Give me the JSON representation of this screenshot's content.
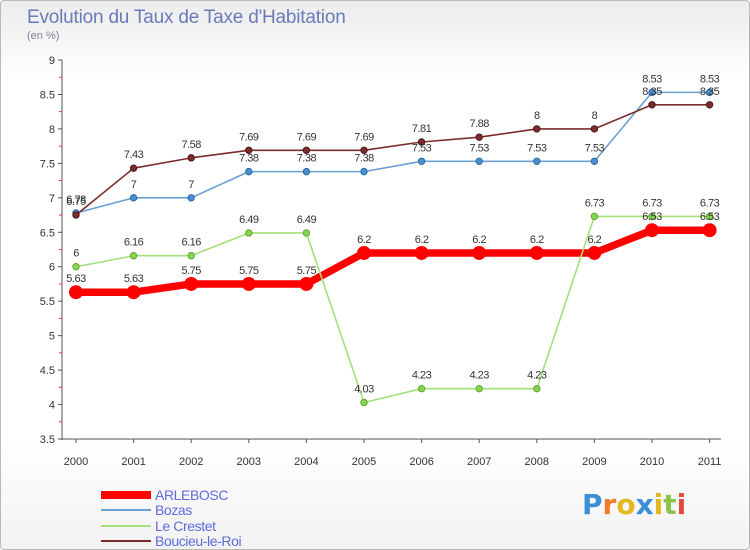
{
  "chart_data": {
    "type": "line",
    "title": "Evolution du Taux de Taxe d'Habitation",
    "subtitle": "(en %)",
    "x": [
      "2000",
      "2001",
      "2002",
      "2003",
      "2004",
      "2005",
      "2006",
      "2007",
      "2008",
      "2009",
      "2010",
      "2011"
    ],
    "ylim": [
      3.5,
      9
    ],
    "yticks": [
      "3.5",
      "4",
      "4.5",
      "5",
      "5.5",
      "6",
      "6.5",
      "7",
      "7.5",
      "8",
      "8.5",
      "9"
    ],
    "grid": "off",
    "legend_position": "bottom-left",
    "series": [
      {
        "name": "ARLEBOSC",
        "color": "#ff0000",
        "values": [
          5.63,
          5.63,
          5.75,
          5.75,
          5.75,
          6.2,
          6.2,
          6.2,
          6.2,
          6.2,
          6.53,
          6.53
        ],
        "labels": [
          "5.63",
          "5.63",
          "5.75",
          "5.75",
          "5.75",
          "6.2",
          "6.2",
          "6.2",
          "6.2",
          "6.2",
          "6.53",
          "6.53"
        ]
      },
      {
        "name": "Bozas",
        "color": "#6a9fd2",
        "values": [
          6.78,
          7,
          7,
          7.38,
          7.38,
          7.38,
          7.53,
          7.53,
          7.53,
          7.53,
          8.53,
          8.53
        ],
        "labels": [
          "6.78",
          "7",
          "7",
          "7.38",
          "7.38",
          "7.38",
          "7.53",
          "7.53",
          "7.53",
          "7.53",
          "8.53",
          "8.53"
        ]
      },
      {
        "name": "Le Crestet",
        "color": "#a3e07a",
        "values": [
          6,
          6.16,
          6.16,
          6.49,
          6.49,
          4.03,
          4.23,
          4.23,
          4.23,
          6.73,
          6.73,
          6.73
        ],
        "labels": [
          "6",
          "6.16",
          "6.16",
          "6.49",
          "6.49",
          "4.03",
          "4.23",
          "4.23",
          "4.23",
          "6.73",
          "6.73",
          "6.73"
        ]
      },
      {
        "name": "Boucieu-le-Roi",
        "color": "#7b2c2c",
        "values": [
          6.75,
          7.43,
          7.58,
          7.69,
          7.69,
          7.69,
          7.81,
          7.88,
          8,
          8,
          8.35,
          8.35
        ],
        "labels": [
          "6.75",
          "7.43",
          "7.58",
          "7.69",
          "7.69",
          "7.69",
          "7.81",
          "7.88",
          "8",
          "8",
          "8.35",
          "8.35"
        ]
      }
    ]
  },
  "logo": {
    "letters": [
      "P",
      "r",
      "o",
      "x",
      "i",
      "t",
      "i"
    ],
    "colors": [
      "#3a8fd6",
      "#f07a2a",
      "#e3b81e",
      "#3a8fd6",
      "#e3b81e",
      "#8bc34a",
      "#e34a3a"
    ]
  }
}
